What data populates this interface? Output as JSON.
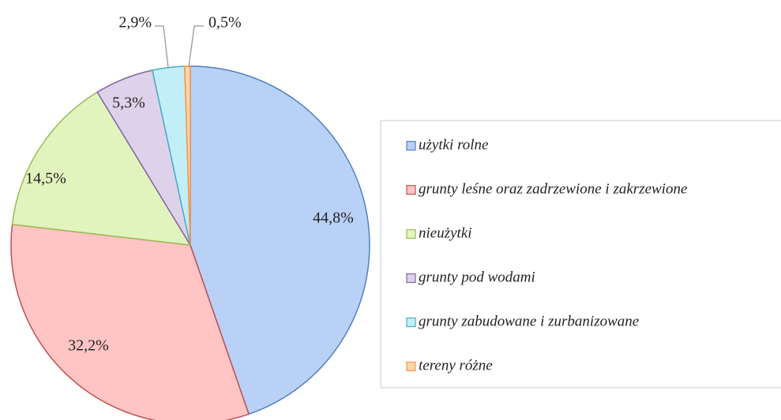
{
  "chart_data": {
    "type": "pie",
    "categories": [
      "użytki rolne",
      "grunty leśne oraz zadrzewione i zakrzewione",
      "nieużytki",
      "grunty pod wodami",
      "grunty zabudowane i zurbanizowane",
      "tereny różne"
    ],
    "values": [
      44.8,
      32.2,
      14.5,
      5.3,
      2.9,
      0.5
    ],
    "value_labels": [
      "44,8%",
      "32,2%",
      "14,5%",
      "5,3%",
      "2,9%",
      "0,5%"
    ],
    "colors": [
      "#b9d1f6",
      "#ffc4c4",
      "#e2f4bd",
      "#ddd2ea",
      "#c2eef8",
      "#fcd5ad"
    ],
    "edge_colors": [
      "#4f81bd",
      "#c0504d",
      "#9bbb59",
      "#8064a2",
      "#4bacc6",
      "#f79646"
    ],
    "legend": "right"
  }
}
